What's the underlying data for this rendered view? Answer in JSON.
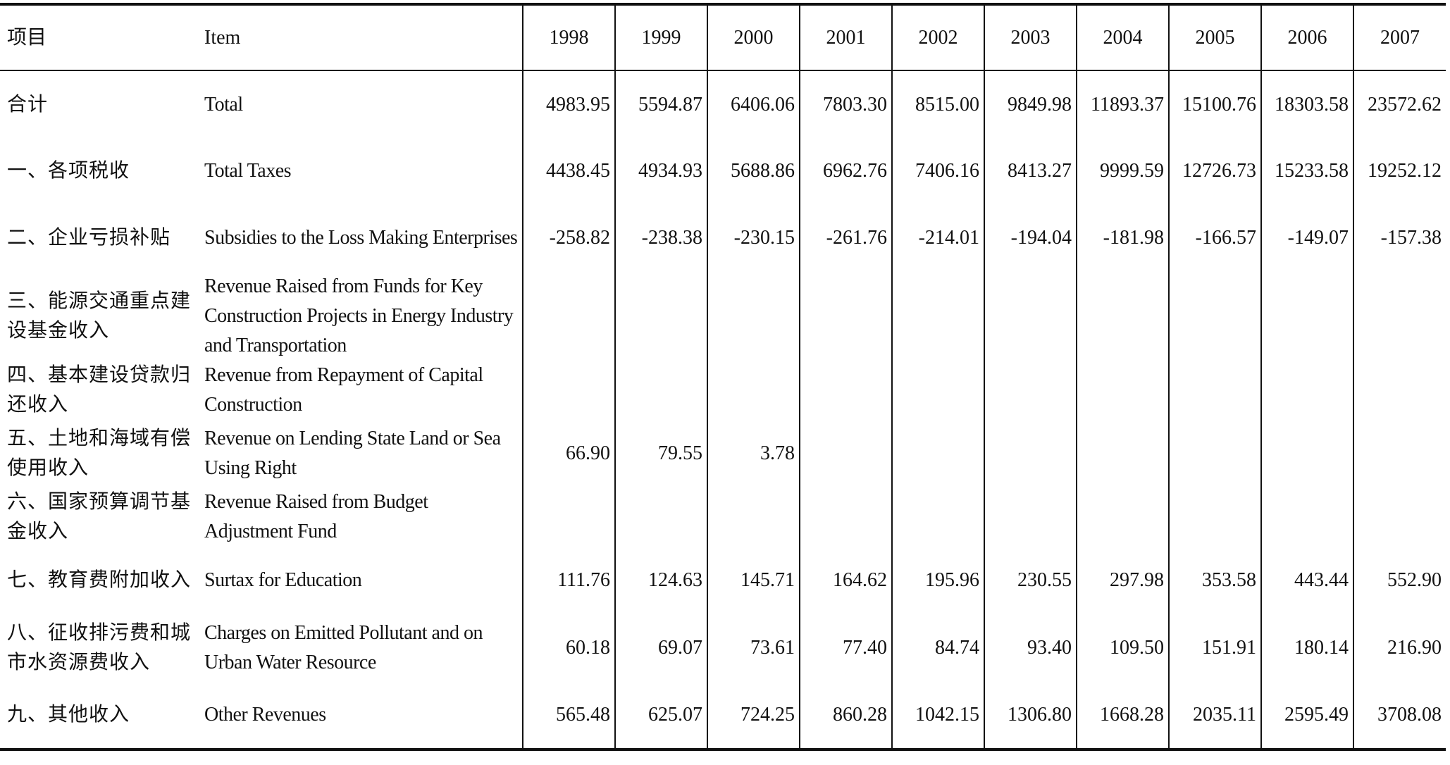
{
  "headers": {
    "item_cn": "项目",
    "item_en": "Item",
    "years": [
      "1998",
      "1999",
      "2000",
      "2001",
      "2002",
      "2003",
      "2004",
      "2005",
      "2006",
      "2007"
    ]
  },
  "rows": [
    {
      "cn": "合计",
      "en": "Total",
      "values": [
        "4983.95",
        "5594.87",
        "6406.06",
        "7803.30",
        "8515.00",
        "9849.98",
        "11893.37",
        "15100.76",
        "18303.58",
        "23572.62"
      ]
    },
    {
      "cn": "一、各项税收",
      "en": "Total Taxes",
      "values": [
        "4438.45",
        "4934.93",
        "5688.86",
        "6962.76",
        "7406.16",
        "8413.27",
        "9999.59",
        "12726.73",
        "15233.58",
        "19252.12"
      ]
    },
    {
      "cn": "二、企业亏损补贴",
      "en": "Subsidies to the Loss Making Enterprises",
      "values": [
        "-258.82",
        "-238.38",
        "-230.15",
        "-261.76",
        "-214.01",
        "-194.04",
        "-181.98",
        "-166.57",
        "-149.07",
        "-157.38"
      ]
    },
    {
      "cn": "三、能源交通重点建设基金收入",
      "en": "Revenue Raised from Funds for Key Construction Projects in Energy Industry and Transportation",
      "values": [
        "",
        "",
        "",
        "",
        "",
        "",
        "",
        "",
        "",
        ""
      ]
    },
    {
      "cn": "四、基本建设贷款归还收入",
      "en": "Revenue from Repayment of Capital Construction",
      "values": [
        "",
        "",
        "",
        "",
        "",
        "",
        "",
        "",
        "",
        ""
      ]
    },
    {
      "cn": "五、土地和海域有偿使用收入",
      "en": "Revenue on Lending State Land or Sea Using Right",
      "values": [
        "66.90",
        "79.55",
        "3.78",
        "",
        "",
        "",
        "",
        "",
        "",
        ""
      ]
    },
    {
      "cn": "六、国家预算调节基金收入",
      "en": "Revenue Raised from Budget Adjustment Fund",
      "values": [
        "",
        "",
        "",
        "",
        "",
        "",
        "",
        "",
        "",
        ""
      ]
    },
    {
      "cn": "七、教育费附加收入",
      "en": "Surtax for Education",
      "values": [
        "111.76",
        "124.63",
        "145.71",
        "164.62",
        "195.96",
        "230.55",
        "297.98",
        "353.58",
        "443.44",
        "552.90"
      ]
    },
    {
      "cn": "八、征收排污费和城市水资源费收入",
      "en": "Charges on Emitted Pollutant and on Urban Water Resource",
      "values": [
        "60.18",
        "69.07",
        "73.61",
        "77.40",
        "84.74",
        "93.40",
        "109.50",
        "151.91",
        "180.14",
        "216.90"
      ]
    },
    {
      "cn": "九、其他收入",
      "en": "Other Revenues",
      "values": [
        "565.48",
        "625.07",
        "724.25",
        "860.28",
        "1042.15",
        "1306.80",
        "1668.28",
        "2035.11",
        "2595.49",
        "3708.08"
      ]
    }
  ]
}
